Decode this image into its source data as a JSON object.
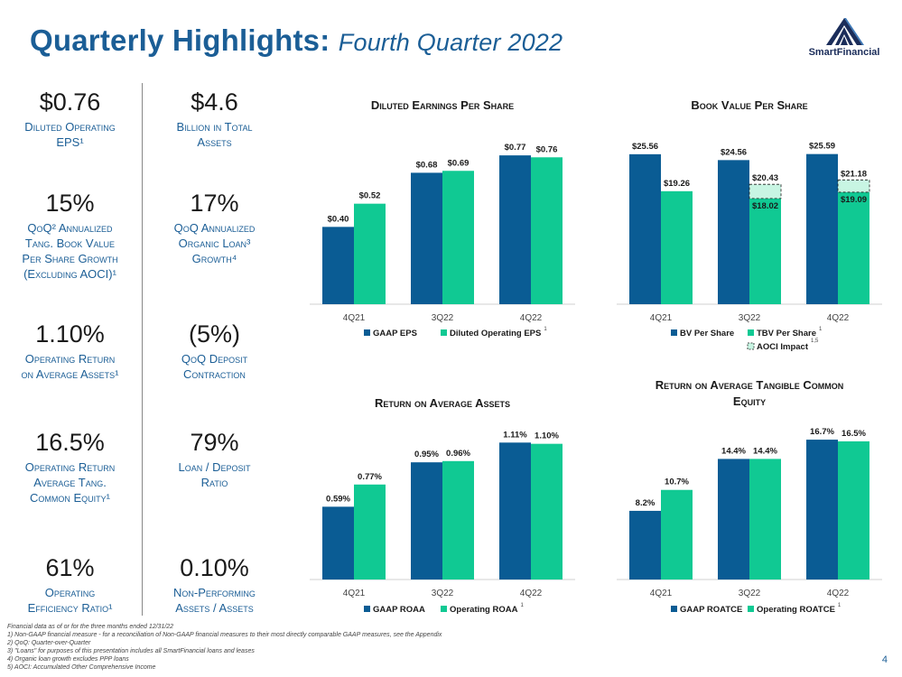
{
  "header": {
    "title_main": "Quarterly Highlights:",
    "title_sub": "Fourth Quarter 2022"
  },
  "logo": {
    "name": "SmartFinancial",
    "icon": "pyramid-logo-icon"
  },
  "kpis": [
    {
      "value": "$0.76",
      "label_lines": [
        "Diluted Operating",
        "EPS¹"
      ]
    },
    {
      "value": "$4.6",
      "label_lines": [
        "Billion in Total",
        "Assets"
      ]
    },
    {
      "value": "15%",
      "label_lines": [
        "QoQ² Annualized",
        "Tang. Book Value",
        "Per Share Growth",
        "(Excluding AOCI)¹"
      ]
    },
    {
      "value": "17%",
      "label_lines": [
        "QoQ Annualized",
        "Organic Loan³",
        "Growth⁴"
      ]
    },
    {
      "value": "1.10%",
      "label_lines": [
        "Operating Return",
        "on Average Assets¹"
      ]
    },
    {
      "value": "(5%)",
      "label_lines": [
        "QoQ Deposit",
        "Contraction"
      ]
    },
    {
      "value": "16.5%",
      "label_lines": [
        "Operating Return",
        "Average Tang.",
        "Common Equity¹"
      ]
    },
    {
      "value": "79%",
      "label_lines": [
        "Loan / Deposit",
        "Ratio"
      ]
    },
    {
      "value": "61%",
      "label_lines": [
        "Operating",
        "Efficiency Ratio¹"
      ]
    },
    {
      "value": "0.10%",
      "label_lines": [
        "Non-Performing",
        "Assets / Assets"
      ]
    }
  ],
  "colors": {
    "dark": "#0a5c94",
    "light": "#10c993",
    "aoci_fill": "#c8f5e3",
    "accent": "#1b5e96"
  },
  "chart_data": [
    {
      "type": "bar",
      "title": "Diluted Earnings Per Share",
      "categories": [
        "4Q21",
        "3Q22",
        "4Q22"
      ],
      "series": [
        {
          "name": "GAAP EPS",
          "values": [
            0.4,
            0.68,
            0.77
          ],
          "labels": [
            "$0.40",
            "$0.68",
            "$0.77"
          ]
        },
        {
          "name": "Diluted Operating EPS",
          "values": [
            0.52,
            0.69,
            0.76
          ],
          "labels": [
            "$0.52",
            "$0.69",
            "$0.76"
          ],
          "note": "1"
        }
      ],
      "ylim": [
        0,
        0.85
      ]
    },
    {
      "type": "bar",
      "title": "Book Value Per Share",
      "categories": [
        "4Q21",
        "3Q22",
        "4Q22"
      ],
      "series": [
        {
          "name": "BV Per Share",
          "values": [
            25.56,
            24.56,
            25.59
          ],
          "labels": [
            "$25.56",
            "$24.56",
            "$25.59"
          ]
        },
        {
          "name": "TBV Per Share",
          "values": [
            19.26,
            18.02,
            19.09
          ],
          "labels": [
            "$19.26",
            "$18.02",
            "$19.09"
          ],
          "note": "1"
        },
        {
          "name": "AOCI Impact",
          "values": [
            null,
            20.43,
            21.18
          ],
          "labels": [
            "",
            "$20.43",
            "$21.18"
          ],
          "note": "1,5"
        }
      ],
      "ylim": [
        0,
        28
      ]
    },
    {
      "type": "bar",
      "title": "Return on Average Assets",
      "categories": [
        "4Q21",
        "3Q22",
        "4Q22"
      ],
      "series": [
        {
          "name": "GAAP ROAA",
          "values": [
            0.59,
            0.95,
            1.11
          ],
          "labels": [
            "0.59%",
            "0.95%",
            "1.11%"
          ]
        },
        {
          "name": "Operating ROAA",
          "values": [
            0.77,
            0.96,
            1.1
          ],
          "labels": [
            "0.77%",
            "0.96%",
            "1.10%"
          ],
          "note": "1"
        }
      ],
      "ylim": [
        0,
        1.2
      ]
    },
    {
      "type": "bar",
      "title": "Return on Average Tangible Common Equity",
      "categories": [
        "4Q21",
        "3Q22",
        "4Q22"
      ],
      "series": [
        {
          "name": "GAAP ROATCE",
          "values": [
            8.2,
            14.4,
            16.7
          ],
          "labels": [
            "8.2%",
            "14.4%",
            "16.7%"
          ]
        },
        {
          "name": "Operating ROATCE",
          "values": [
            10.7,
            14.4,
            16.5
          ],
          "labels": [
            "10.7%",
            "14.4%",
            "16.5%"
          ],
          "note": "1"
        }
      ],
      "ylim": [
        0,
        18
      ]
    }
  ],
  "footnotes": [
    "Financial data as of or for the three months ended 12/31/22",
    "1) Non-GAAP financial measure - for a reconciliation of Non-GAAP financial measures to their most directly comparable GAAP measures, see the Appendix",
    "2) QoQ: Quarter-over-Quarter",
    "3) \"Loans\" for purposes of this presentation includes all SmartFinancial loans and leases",
    "4) Organic loan growth excludes PPP loans",
    "5) AOCI: Accumulated Other Comprehensive Income"
  ],
  "page_number": "4"
}
